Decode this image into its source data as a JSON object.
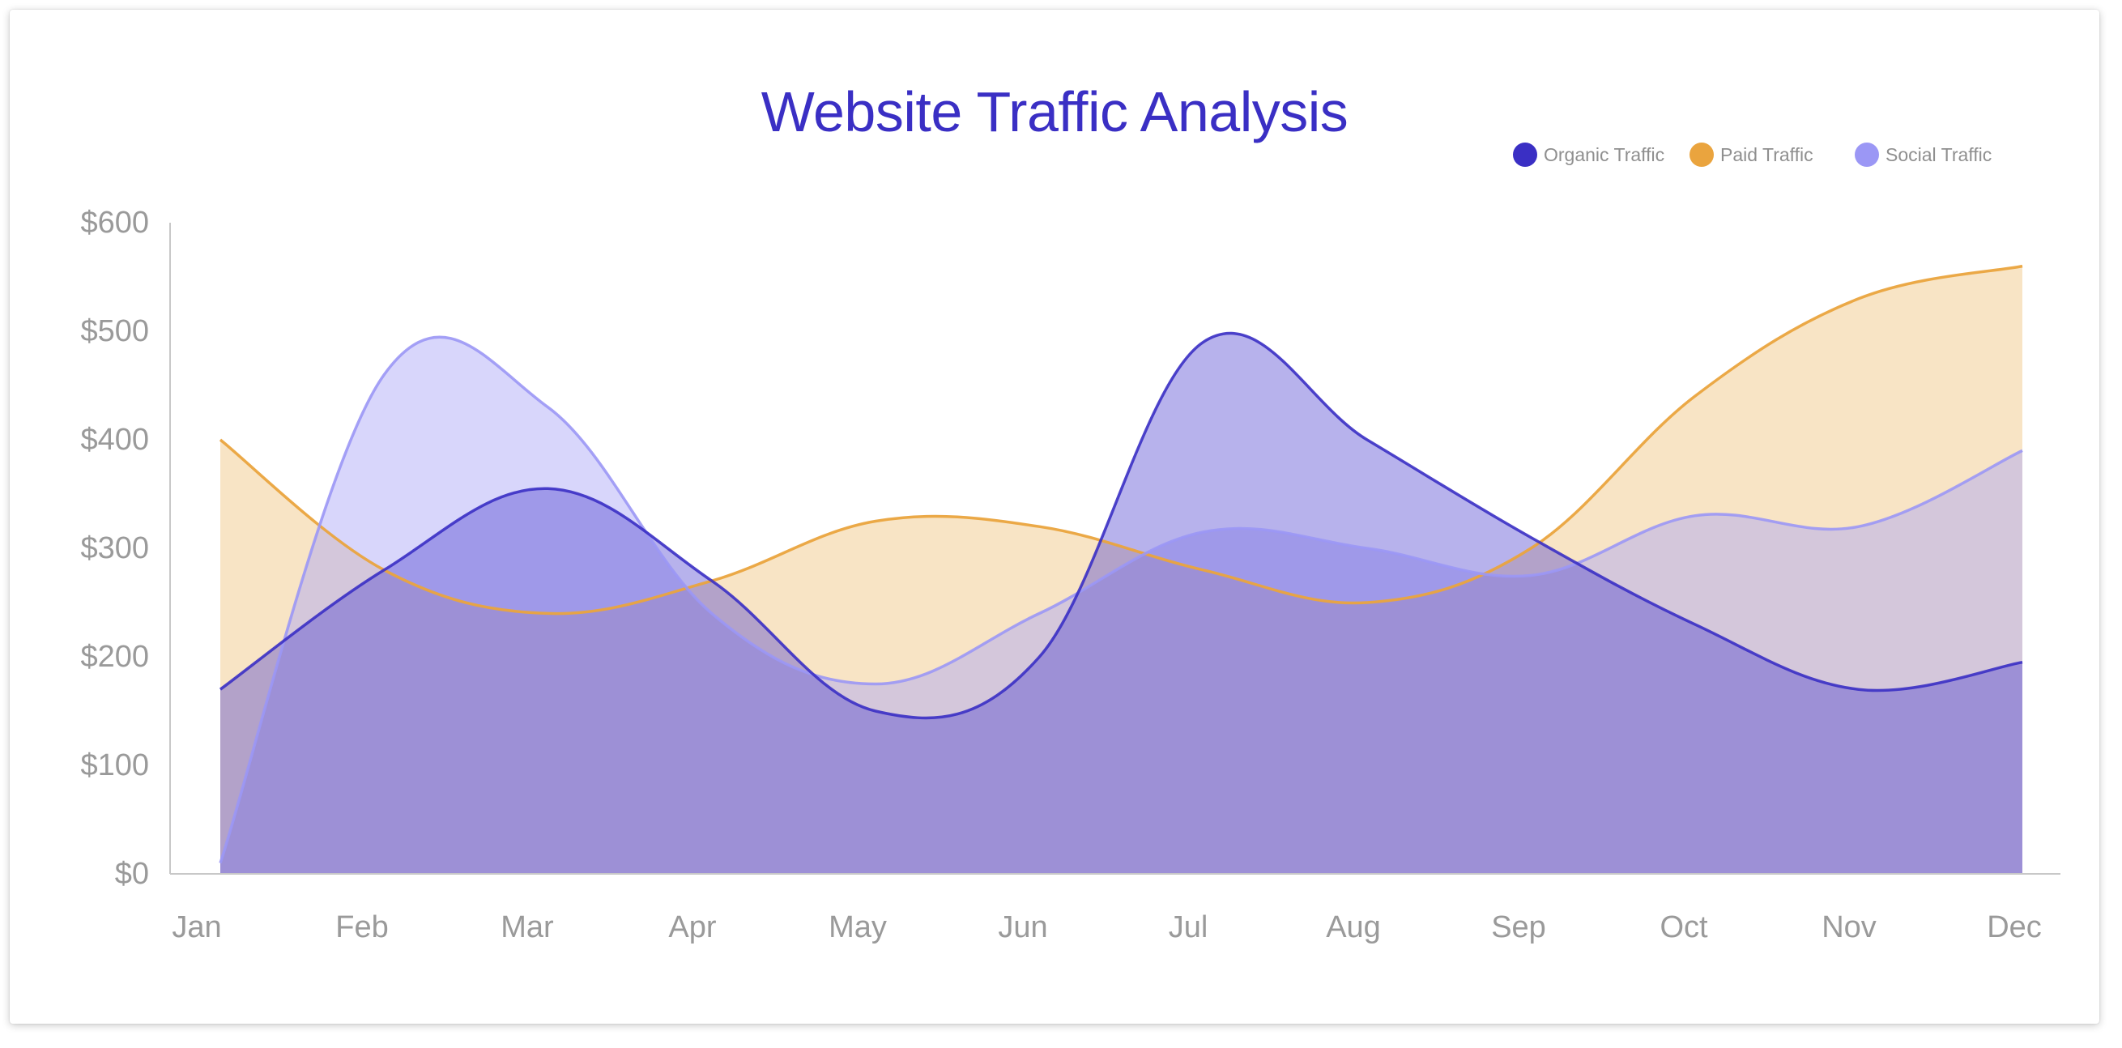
{
  "chart_data": {
    "type": "area",
    "title": "Website Traffic Analysis",
    "xlabel": "",
    "ylabel": "",
    "categories": [
      "Jan",
      "Feb",
      "Mar",
      "Apr",
      "May",
      "Jun",
      "Jul",
      "Aug",
      "Sep",
      "Oct",
      "Nov",
      "Dec"
    ],
    "ylim": [
      0,
      600
    ],
    "yticks": [
      "$0",
      "$100",
      "$200",
      "$300",
      "$400",
      "$500",
      "$600"
    ],
    "grid": false,
    "legend_position": "top-right",
    "series": [
      {
        "name": "Organic Traffic",
        "color": "#3a2fc4",
        "fill": "#4a3fd0",
        "values": [
          170,
          280,
          355,
          270,
          150,
          200,
          490,
          400,
          310,
          230,
          170,
          195
        ]
      },
      {
        "name": "Paid Traffic",
        "color": "#eaa43e",
        "fill": "#f0c37e",
        "values": [
          400,
          280,
          240,
          270,
          325,
          320,
          280,
          250,
          300,
          440,
          530,
          560
        ]
      },
      {
        "name": "Social Traffic",
        "color": "#9b97f5",
        "fill": "#a9a4f7",
        "values": [
          10,
          460,
          430,
          240,
          175,
          240,
          315,
          300,
          275,
          330,
          320,
          390
        ]
      }
    ]
  }
}
